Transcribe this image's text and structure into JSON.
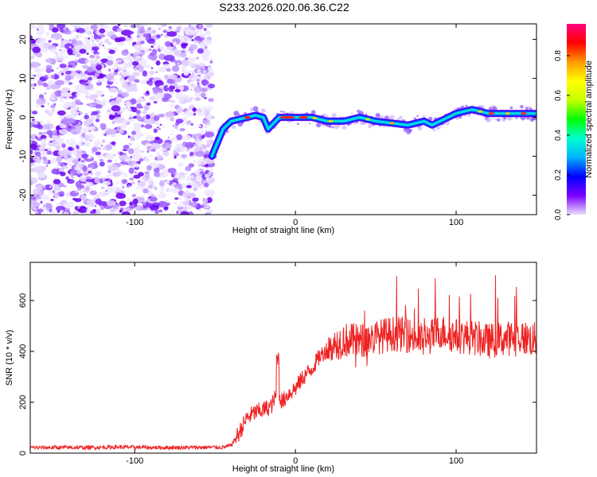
{
  "title": "S233.2026.020.06.36.C22",
  "chart_data": [
    {
      "type": "heatmap",
      "xlabel": "Height of straight line (km)",
      "ylabel": "Frequency (Hz)",
      "xlim": [
        -165,
        150
      ],
      "ylim": [
        -25,
        24
      ],
      "xticks": [
        -100,
        0,
        100
      ],
      "yticks": [
        -20,
        -10,
        0,
        10,
        20
      ],
      "colorbar": {
        "label": "Normalized spectral amplitude",
        "range": [
          0,
          0.96
        ],
        "ticks": [
          0.0,
          0.2,
          0.4,
          0.6,
          0.8
        ],
        "colormap": [
          "#e9ddff",
          "#7b00ff",
          "#0000ff",
          "#00b4ff",
          "#00ffd0",
          "#00ff00",
          "#c8ff00",
          "#ffff00",
          "#ff9900",
          "#ff0000",
          "#ff0080"
        ]
      },
      "noise_region": {
        "x": [
          -165,
          -52
        ],
        "y": [
          -25,
          24
        ]
      },
      "ridge": {
        "x": [
          -52,
          -45,
          -40,
          -35,
          -30,
          -25,
          -20,
          -17,
          -10,
          0,
          10,
          20,
          30,
          40,
          50,
          60,
          70,
          80,
          85,
          90,
          100,
          110,
          120,
          130,
          140,
          150
        ],
        "y": [
          -10,
          -3,
          -1,
          -0.5,
          0,
          0.5,
          0,
          -3,
          0,
          0,
          0,
          -1,
          -1,
          0,
          -1,
          -1.5,
          -2,
          -1,
          -2,
          -1,
          1,
          2,
          1,
          1,
          1,
          1
        ]
      },
      "grid": false
    },
    {
      "type": "line",
      "xlabel": "Height of straight line (km)",
      "ylabel": "SNR (10 * v/v)",
      "xlim": [
        -165,
        150
      ],
      "ylim": [
        0,
        750
      ],
      "xticks": [
        -100,
        0,
        100
      ],
      "yticks": [
        0,
        200,
        400,
        600
      ],
      "color": "#ee2222",
      "series": [
        {
          "x": [
            -165,
            -150,
            -130,
            -110,
            -90,
            -70,
            -50,
            -45,
            -40,
            -35,
            -30,
            -25,
            -20,
            -15,
            -11,
            -8,
            -5,
            0,
            5,
            10,
            15,
            20,
            25,
            30,
            40,
            50,
            60,
            70,
            80,
            90,
            100,
            110,
            120,
            130,
            140,
            150
          ],
          "y": [
            22,
            22,
            22,
            24,
            22,
            22,
            23,
            23,
            30,
            80,
            140,
            160,
            170,
            185,
            240,
            200,
            230,
            255,
            300,
            330,
            380,
            410,
            430,
            445,
            440,
            455,
            470,
            465,
            440,
            480,
            460,
            455,
            440,
            450,
            455,
            445
          ]
        }
      ],
      "grid": false
    }
  ]
}
